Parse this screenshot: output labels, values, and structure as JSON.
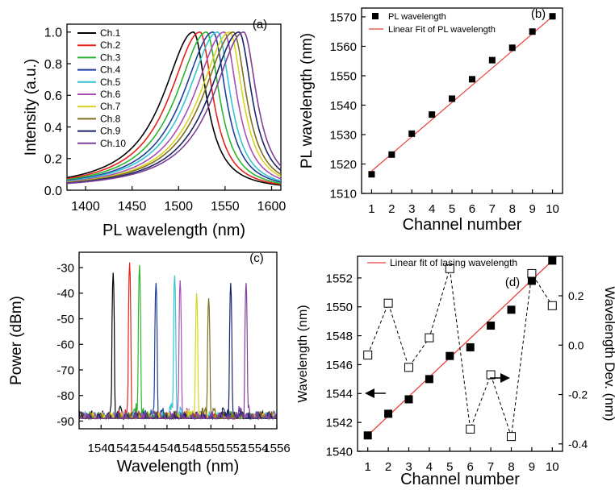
{
  "colors": {
    "axis": "#000000",
    "fit_line": "#e8403a",
    "channels": [
      "#000000",
      "#e3221b",
      "#2bb52e",
      "#1f3f9c",
      "#36c4d4",
      "#a64fb0",
      "#d9d31f",
      "#7b6f22",
      "#1a2466",
      "#7e3f98"
    ]
  },
  "chart_data": [
    {
      "panel": "a",
      "type": "line",
      "panel_label": "(a)",
      "xlabel": "PL wavelength (nm)",
      "ylabel": "Intensity (a.u.)",
      "xlim": [
        1380,
        1610
      ],
      "ylim": [
        0,
        1.05
      ],
      "xticks": [
        1400,
        1450,
        1500,
        1550,
        1600
      ],
      "yticks": [
        0.0,
        0.2,
        0.4,
        0.6,
        0.8,
        1.0
      ],
      "ytick_labels": [
        "0.0",
        "0.2",
        "0.4",
        "0.6",
        "0.8",
        "1.0"
      ],
      "series": [
        {
          "name": "Ch.1",
          "peak": 1516
        },
        {
          "name": "Ch.2",
          "peak": 1523
        },
        {
          "name": "Ch.3",
          "peak": 1530
        },
        {
          "name": "Ch.4",
          "peak": 1537
        },
        {
          "name": "Ch.5",
          "peak": 1542
        },
        {
          "name": "Ch.6",
          "peak": 1549
        },
        {
          "name": "Ch.7",
          "peak": 1555
        },
        {
          "name": "Ch.8",
          "peak": 1559
        },
        {
          "name": "Ch.9",
          "peak": 1565
        },
        {
          "name": "Ch.10",
          "peak": 1570
        }
      ],
      "legend_position": "top-left"
    },
    {
      "panel": "b",
      "type": "scatter",
      "panel_label": "(b)",
      "xlabel": "Channel number",
      "ylabel": "PL wavelength (nm)",
      "xlim": [
        0.5,
        10.5
      ],
      "ylim": [
        1510,
        1573
      ],
      "xticks": [
        1,
        2,
        3,
        4,
        5,
        6,
        7,
        8,
        9,
        10
      ],
      "yticks": [
        1510,
        1520,
        1530,
        1540,
        1550,
        1560,
        1570
      ],
      "series": [
        {
          "name": "PL wavelength",
          "x": [
            1,
            2,
            3,
            4,
            5,
            6,
            7,
            8,
            9,
            10
          ],
          "y": [
            1516.5,
            1523.2,
            1530.3,
            1536.8,
            1542.2,
            1548.8,
            1555.3,
            1559.5,
            1565.0,
            1570.2
          ]
        },
        {
          "name": "Linear Fit of PL wavelength",
          "x": [
            1,
            10
          ],
          "y": [
            1517.6,
            1570.1
          ]
        }
      ],
      "legend_position": "top-left"
    },
    {
      "panel": "c",
      "type": "line",
      "panel_label": "(c)",
      "xlabel": "Wavelength (nm)",
      "ylabel": "Power (dBm)",
      "xlim": [
        1538,
        1556
      ],
      "ylim": [
        -93,
        -24
      ],
      "xticks": [
        1540,
        1542,
        1544,
        1546,
        1548,
        1550,
        1552,
        1554,
        1556
      ],
      "yticks": [
        -30,
        -40,
        -50,
        -60,
        -70,
        -80,
        -90
      ],
      "series": [
        {
          "name": "Ch.1",
          "peak_x": 1541.1,
          "peak_y": -32
        },
        {
          "name": "Ch.2",
          "peak_x": 1542.6,
          "peak_y": -28
        },
        {
          "name": "Ch.3",
          "peak_x": 1543.5,
          "peak_y": -29
        },
        {
          "name": "Ch.4",
          "peak_x": 1545.0,
          "peak_y": -36
        },
        {
          "name": "Ch.5",
          "peak_x": 1546.7,
          "peak_y": -33
        },
        {
          "name": "Ch.6",
          "peak_x": 1547.2,
          "peak_y": -35
        },
        {
          "name": "Ch.7",
          "peak_x": 1548.7,
          "peak_y": -40
        },
        {
          "name": "Ch.8",
          "peak_x": 1549.8,
          "peak_y": -42
        },
        {
          "name": "Ch.9",
          "peak_x": 1551.8,
          "peak_y": -36
        },
        {
          "name": "Ch.10",
          "peak_x": 1553.2,
          "peak_y": -36
        }
      ]
    },
    {
      "panel": "d",
      "type": "scatter",
      "panel_label": "(d)",
      "xlabel": "Channel number",
      "ylabel": "Wavelength (nm)",
      "y2label": "Wavelength Dev. (nm)",
      "xlim": [
        0.5,
        10.5
      ],
      "ylim": [
        1540,
        1553.5
      ],
      "y2lim": [
        -0.43,
        0.36
      ],
      "xticks": [
        1,
        2,
        3,
        4,
        5,
        6,
        7,
        8,
        9,
        10
      ],
      "yticks": [
        1540,
        1542,
        1544,
        1546,
        1548,
        1550,
        1552
      ],
      "y2ticks": [
        -0.4,
        -0.2,
        0.0,
        0.2
      ],
      "y2tick_labels": [
        "-0.4",
        "-0.2",
        "0.0",
        "0.2"
      ],
      "series": [
        {
          "name": "lasing wavelength",
          "x": [
            1,
            2,
            3,
            4,
            5,
            6,
            7,
            8,
            9,
            10
          ],
          "y": [
            1541.1,
            1542.6,
            1543.6,
            1545.0,
            1546.6,
            1547.2,
            1548.7,
            1549.8,
            1551.8,
            1553.2
          ]
        },
        {
          "name": "Linear fit of lasing wavelength",
          "x": [
            1,
            10
          ],
          "y": [
            1541.1,
            1553.2
          ]
        },
        {
          "name": "Wavelength Dev.",
          "axis": "right",
          "x": [
            1,
            2,
            3,
            4,
            5,
            6,
            7,
            8,
            9,
            10
          ],
          "y": [
            -0.04,
            0.17,
            -0.09,
            0.03,
            0.31,
            -0.34,
            -0.12,
            -0.37,
            0.29,
            0.16
          ]
        }
      ],
      "legend_position": "top-left"
    }
  ]
}
